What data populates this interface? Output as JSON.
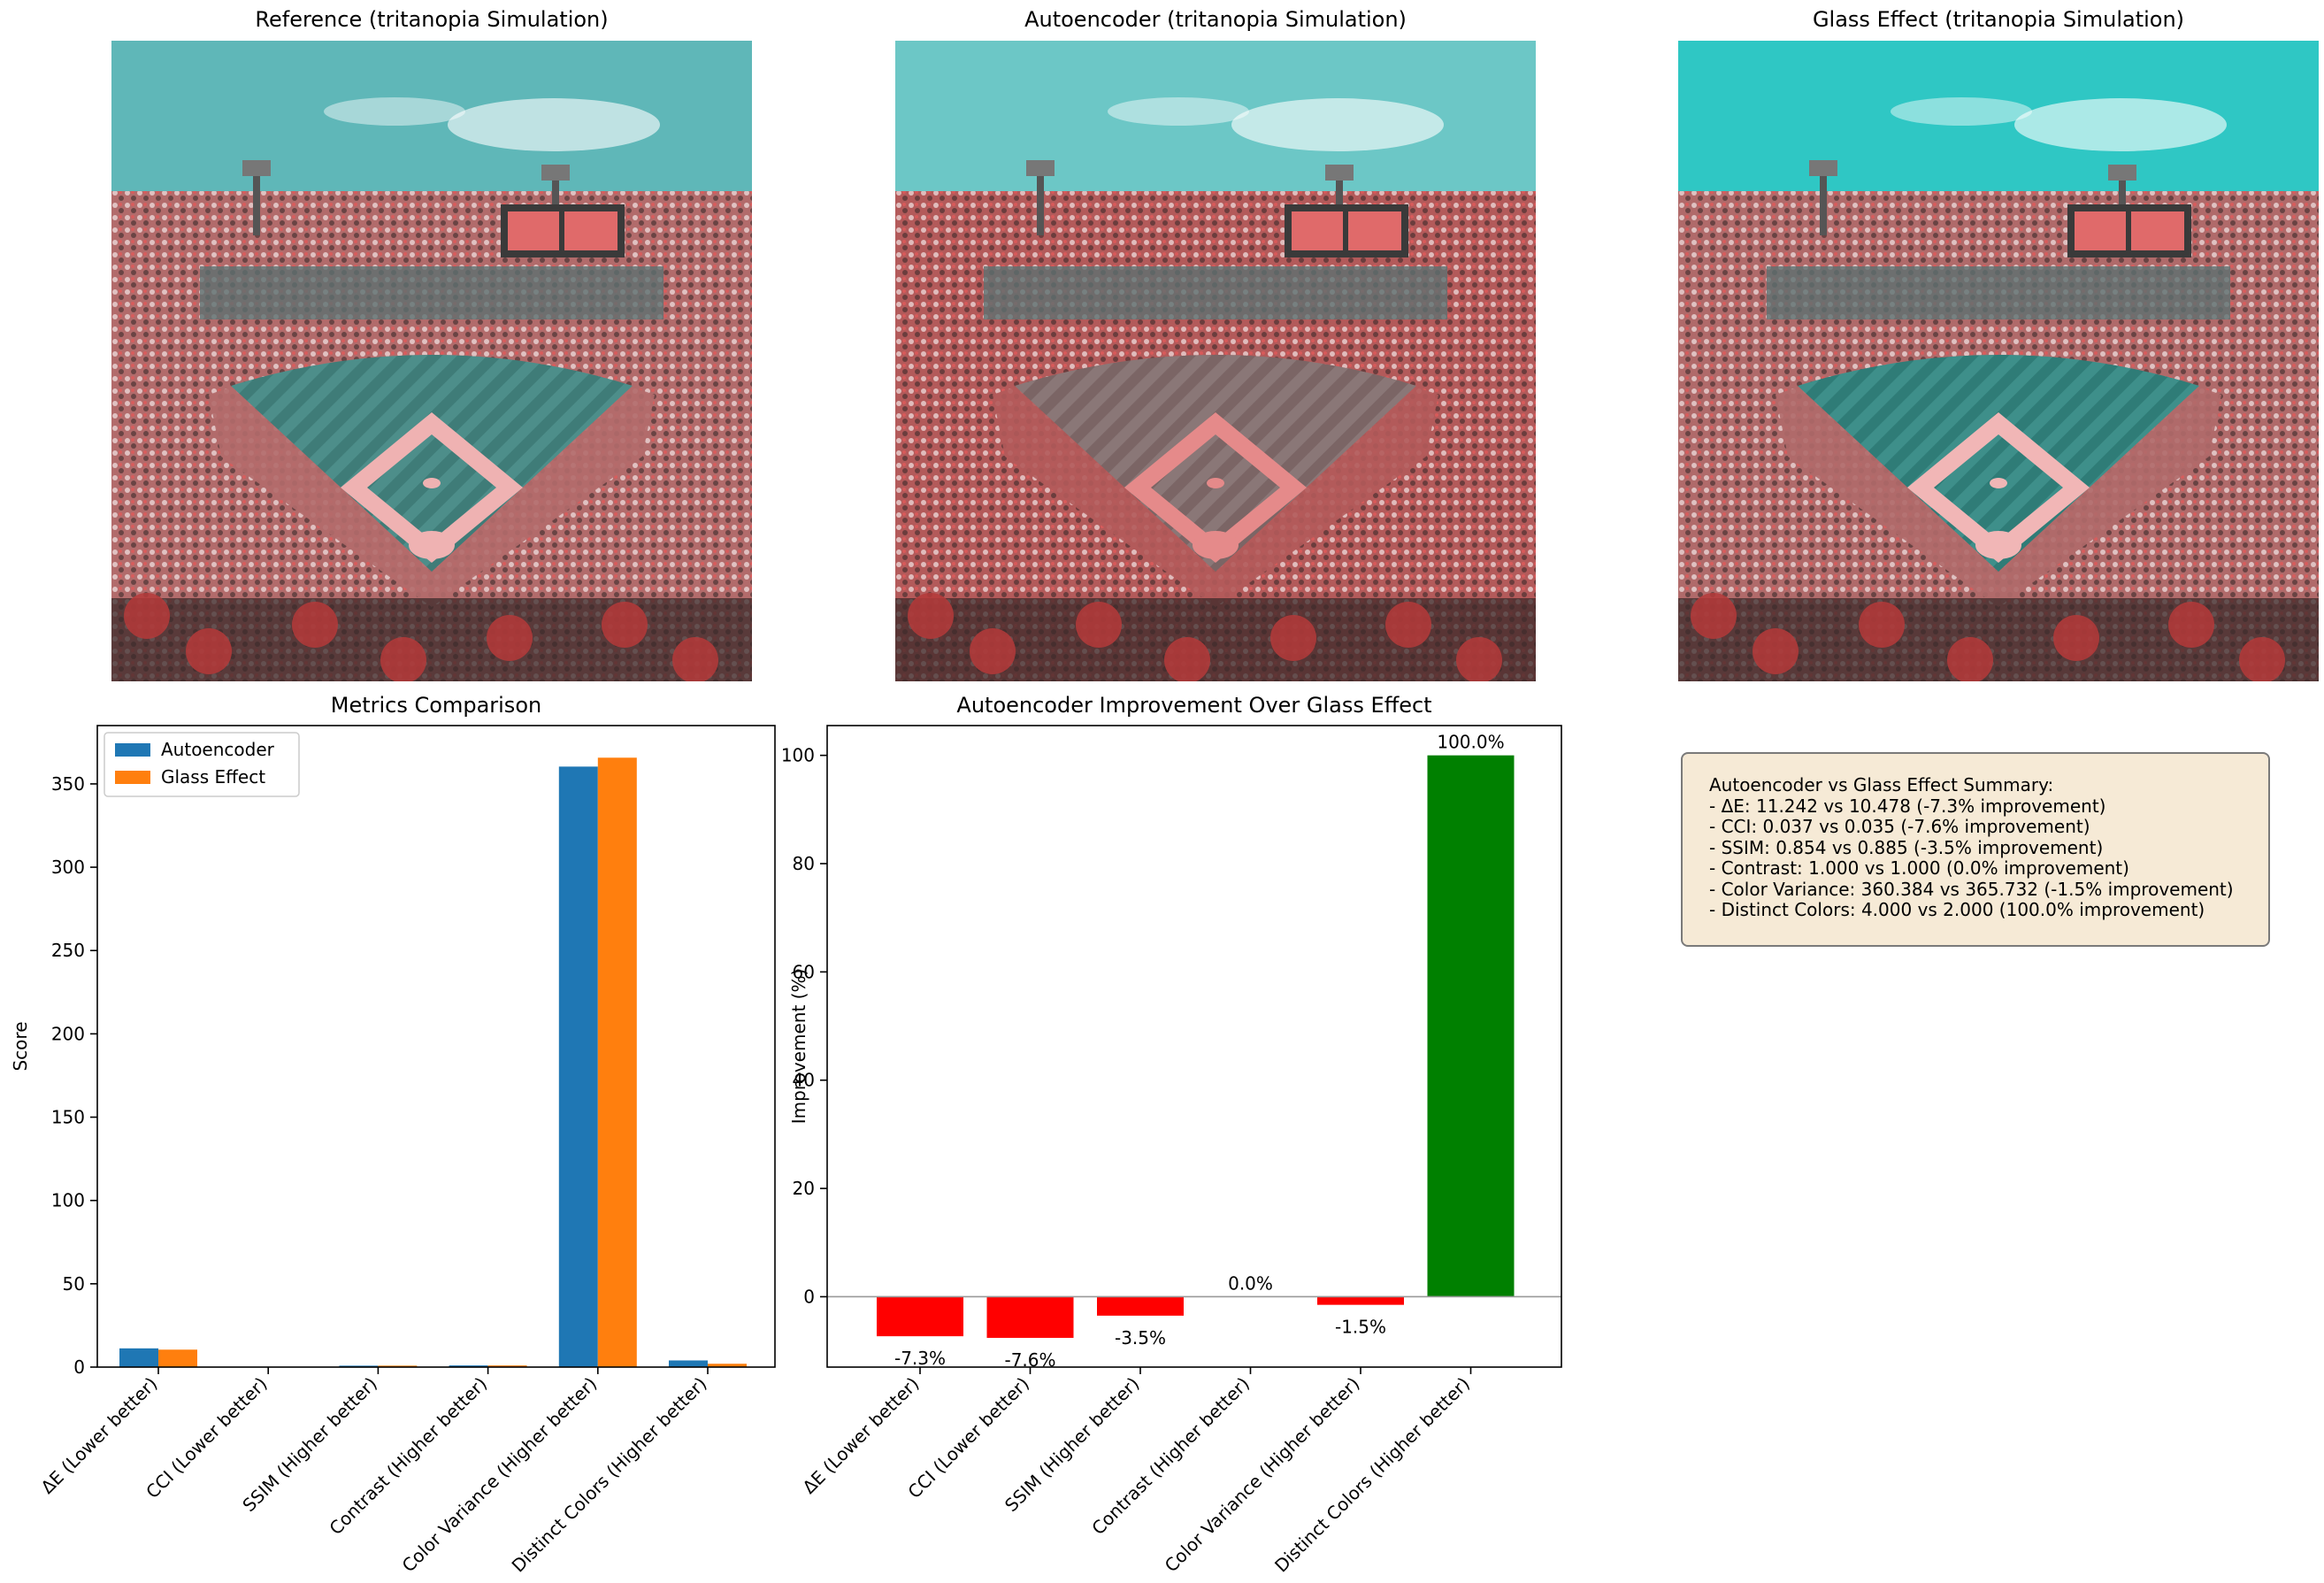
{
  "images": [
    {
      "title": "Reference (tritanopia Simulation)",
      "sky": "#5fb7b8",
      "field": "#4d8e8a",
      "dirt": "#efb2b2",
      "stands": "#b26b6b",
      "stripes": "#3f7c78"
    },
    {
      "title": "Autoencoder (tritanopia Simulation)",
      "sky": "#6cc7c6",
      "field": "#8a7777",
      "dirt": "#e58a8a",
      "stands": "#b35a5a",
      "stripes": "#7b6565"
    },
    {
      "title": "Glass Effect (tritanopia Simulation)",
      "sky": "#2fc7c4",
      "field": "#3e8f8a",
      "dirt": "#f1b6b6",
      "stands": "#b06a6a",
      "stripes": "#2f7c77"
    }
  ],
  "chart_data": [
    {
      "type": "bar",
      "title": "Metrics Comparison",
      "xlabel": "",
      "ylabel": "Score",
      "categories": [
        "ΔE (Lower better)",
        "CCI (Lower better)",
        "SSIM (Higher better)",
        "Contrast (Higher better)",
        "Color Variance (Higher better)",
        "Distinct Colors (Higher better)"
      ],
      "series": [
        {
          "name": "Autoencoder",
          "color": "#1f77b4",
          "values": [
            11.242,
            0.037,
            0.854,
            1.0,
            360.384,
            4.0
          ]
        },
        {
          "name": "Glass Effect",
          "color": "#ff7f0e",
          "values": [
            10.478,
            0.035,
            0.885,
            1.0,
            365.732,
            2.0
          ]
        }
      ],
      "yticks": [
        0,
        50,
        100,
        150,
        200,
        250,
        300,
        350
      ],
      "ylim": [
        0,
        385
      ],
      "legend": "top-left",
      "grid": false
    },
    {
      "type": "bar",
      "title": "Autoencoder Improvement Over Glass Effect",
      "xlabel": "",
      "ylabel": "Improvement (%)",
      "categories": [
        "ΔE (Lower better)",
        "CCI (Lower better)",
        "SSIM (Higher better)",
        "Contrast (Higher better)",
        "Color Variance (Higher better)",
        "Distinct Colors (Higher better)"
      ],
      "values": [
        -7.3,
        -7.6,
        -3.5,
        0.0,
        -1.5,
        100.0
      ],
      "labels": [
        "-7.3%",
        "-7.6%",
        "-3.5%",
        "0.0%",
        "-1.5%",
        "100.0%"
      ],
      "positive_color": "#008000",
      "negative_color": "#ff0000",
      "yticks": [
        0,
        20,
        40,
        60,
        80,
        100
      ],
      "ylim": [
        -13,
        105.5
      ],
      "grid": false
    }
  ],
  "summary": {
    "title": "Autoencoder vs Glass Effect Summary:",
    "lines": [
      "- ΔE: 11.242 vs 10.478 (-7.3% improvement)",
      "- CCI: 0.037 vs 0.035 (-7.6% improvement)",
      "- SSIM: 0.854 vs 0.885 (-3.5% improvement)",
      "- Contrast: 1.000 vs 1.000 (0.0% improvement)",
      "- Color Variance: 360.384 vs 365.732 (-1.5% improvement)",
      "- Distinct Colors: 4.000 vs 2.000 (100.0% improvement)"
    ]
  }
}
